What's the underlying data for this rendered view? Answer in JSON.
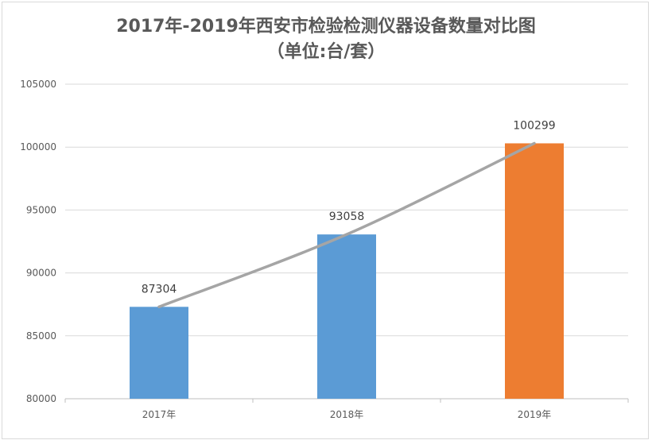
{
  "chart_data": {
    "type": "bar",
    "title": "2017年-2019年西安市检验检测仪器设备数量对比图",
    "subtitle": "（单位:台/套）",
    "categories": [
      "2017年",
      "2018年",
      "2019年"
    ],
    "values": [
      87304,
      93058,
      100299
    ],
    "data_labels": [
      "87304",
      "93058",
      "100299"
    ],
    "bar_colors": [
      "#5b9bd5",
      "#5b9bd5",
      "#ed7d31"
    ],
    "trendline": {
      "type": "line",
      "color": "#a5a5a5",
      "values": [
        87304,
        93058,
        100299
      ]
    },
    "ylim": [
      80000,
      105000
    ],
    "yticks": [
      "80000",
      "85000",
      "90000",
      "95000",
      "100000",
      "105000"
    ],
    "grid": true,
    "xlabel": "",
    "ylabel": ""
  }
}
